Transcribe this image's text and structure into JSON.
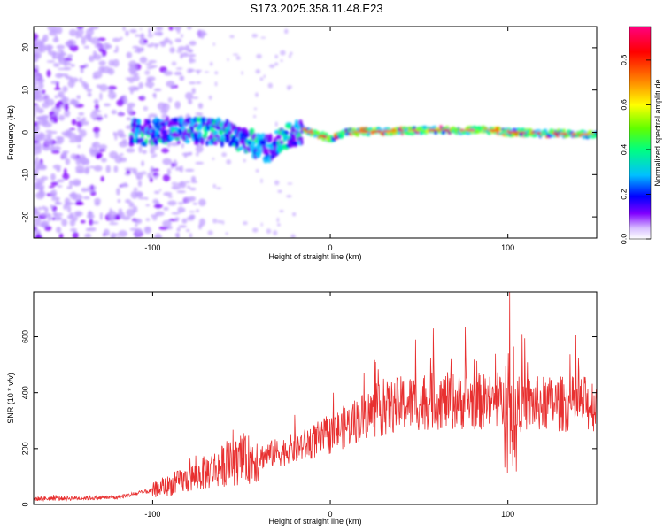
{
  "title": "S173.2025.358.11.48.E23",
  "chart_data": [
    {
      "type": "heatmap",
      "name": "spectrogram",
      "xlabel": "Height of straight line (km)",
      "ylabel": "Frequency (Hz)",
      "xlim": [
        -167,
        150
      ],
      "ylim": [
        -25,
        25
      ],
      "xticks": [
        -100,
        0,
        100
      ],
      "xtick_labels": [
        "-100",
        "0",
        "100"
      ],
      "yticks": [
        -20,
        -10,
        0,
        10,
        20
      ],
      "ytick_labels": [
        "-20",
        "-10",
        "0",
        "10",
        "20"
      ],
      "colorbar": {
        "label": "Normalized spectral amplitude",
        "range": [
          0.0,
          0.95
        ],
        "ticks": [
          0.0,
          0.2,
          0.4,
          0.6,
          0.8
        ],
        "tick_labels": [
          "0.0",
          "0.2",
          "0.4",
          "0.6",
          "0.8"
        ],
        "colormap": [
          "#ffffff",
          "#c0a0ff",
          "#8000ff",
          "#0000ff",
          "#00c0ff",
          "#00ff80",
          "#80ff00",
          "#ffff00",
          "#ff8000",
          "#ff0000",
          "#ff0080"
        ]
      },
      "ridge_center_hz": [
        {
          "x": -110,
          "y": 0.0
        },
        {
          "x": -80,
          "y": 0.5
        },
        {
          "x": -60,
          "y": 0.0
        },
        {
          "x": -45,
          "y": -2.5
        },
        {
          "x": -35,
          "y": -4.0
        },
        {
          "x": -25,
          "y": -1.0
        },
        {
          "x": -15,
          "y": 0.5
        },
        {
          "x": 0,
          "y": -1.5
        },
        {
          "x": 10,
          "y": 0.0
        },
        {
          "x": 50,
          "y": 0.5
        },
        {
          "x": 90,
          "y": 0.5
        },
        {
          "x": 100,
          "y": 0.0
        },
        {
          "x": 150,
          "y": -0.5
        }
      ]
    },
    {
      "type": "line",
      "name": "snr",
      "xlabel": "Height of straight line (km)",
      "ylabel": "SNR (10 * v/v)",
      "xlim": [
        -167,
        150
      ],
      "ylim": [
        0,
        760
      ],
      "xticks": [
        -100,
        0,
        100
      ],
      "xtick_labels": [
        "-100",
        "0",
        "100"
      ],
      "yticks": [
        0,
        200,
        400,
        600
      ],
      "ytick_labels": [
        "0",
        "200",
        "400",
        "600"
      ],
      "line_color": "#e83030",
      "trend": [
        {
          "x": -167,
          "y": 20
        },
        {
          "x": -120,
          "y": 25
        },
        {
          "x": -100,
          "y": 50
        },
        {
          "x": -80,
          "y": 90
        },
        {
          "x": -60,
          "y": 140
        },
        {
          "x": -40,
          "y": 170
        },
        {
          "x": -20,
          "y": 200
        },
        {
          "x": 0,
          "y": 250
        },
        {
          "x": 20,
          "y": 320
        },
        {
          "x": 40,
          "y": 360
        },
        {
          "x": 60,
          "y": 370
        },
        {
          "x": 80,
          "y": 370
        },
        {
          "x": 100,
          "y": 360
        },
        {
          "x": 120,
          "y": 360
        },
        {
          "x": 150,
          "y": 360
        }
      ],
      "spikes": [
        {
          "x": -20,
          "y": 320
        },
        {
          "x": 30,
          "y": 450
        },
        {
          "x": 48,
          "y": 590
        },
        {
          "x": 58,
          "y": 630
        },
        {
          "x": 68,
          "y": 520
        },
        {
          "x": 76,
          "y": 635
        },
        {
          "x": 101,
          "y": 760
        },
        {
          "x": 104,
          "y": 610
        },
        {
          "x": 108,
          "y": 610
        },
        {
          "x": 140,
          "y": 480
        }
      ]
    }
  ]
}
